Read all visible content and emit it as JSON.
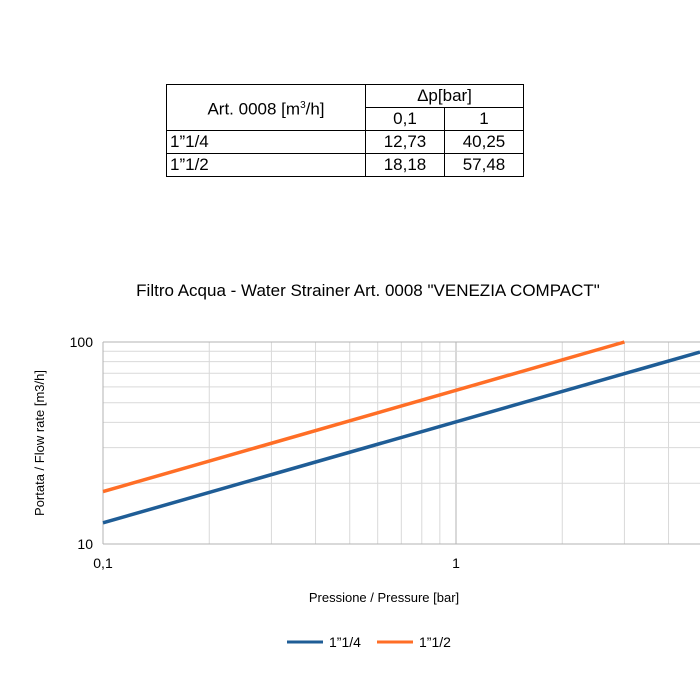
{
  "table": {
    "name_header": "Art. 0008 [m",
    "name_header_sup": "3",
    "name_header_tail": "/h]",
    "dp_header": "Δp[bar]",
    "col_labels": [
      "0,1",
      "1"
    ],
    "rows": [
      {
        "label": "1”1/4",
        "values": [
          "12,73",
          "40,25"
        ]
      },
      {
        "label": "1”1/2",
        "values": [
          "18,18",
          "57,48"
        ]
      }
    ]
  },
  "chart_data": {
    "type": "line",
    "title": "Filtro Acqua - Water Strainer Art. 0008 \"VENEZIA COMPACT\"",
    "xlabel": "Pressione / Pressure [bar]",
    "ylabel": "Portata / Flow rate [m3/h]",
    "x_scale": "log",
    "y_scale": "log",
    "xlim": [
      0.1,
      5
    ],
    "ylim": [
      10,
      100
    ],
    "x_ticks": [
      0.1,
      1
    ],
    "x_tick_labels": [
      "0,1",
      "1"
    ],
    "y_ticks": [
      10,
      100
    ],
    "y_tick_labels": [
      "10",
      "100"
    ],
    "grid": true,
    "legend_position": "bottom",
    "series": [
      {
        "name": "1”1/4",
        "color": "#1f5d96",
        "x": [
          0.1,
          5
        ],
        "y": [
          12.73,
          90
        ]
      },
      {
        "name": "1”1/2",
        "color": "#ff6e26",
        "x": [
          0.1,
          3
        ],
        "y": [
          18.18,
          100
        ]
      }
    ]
  }
}
